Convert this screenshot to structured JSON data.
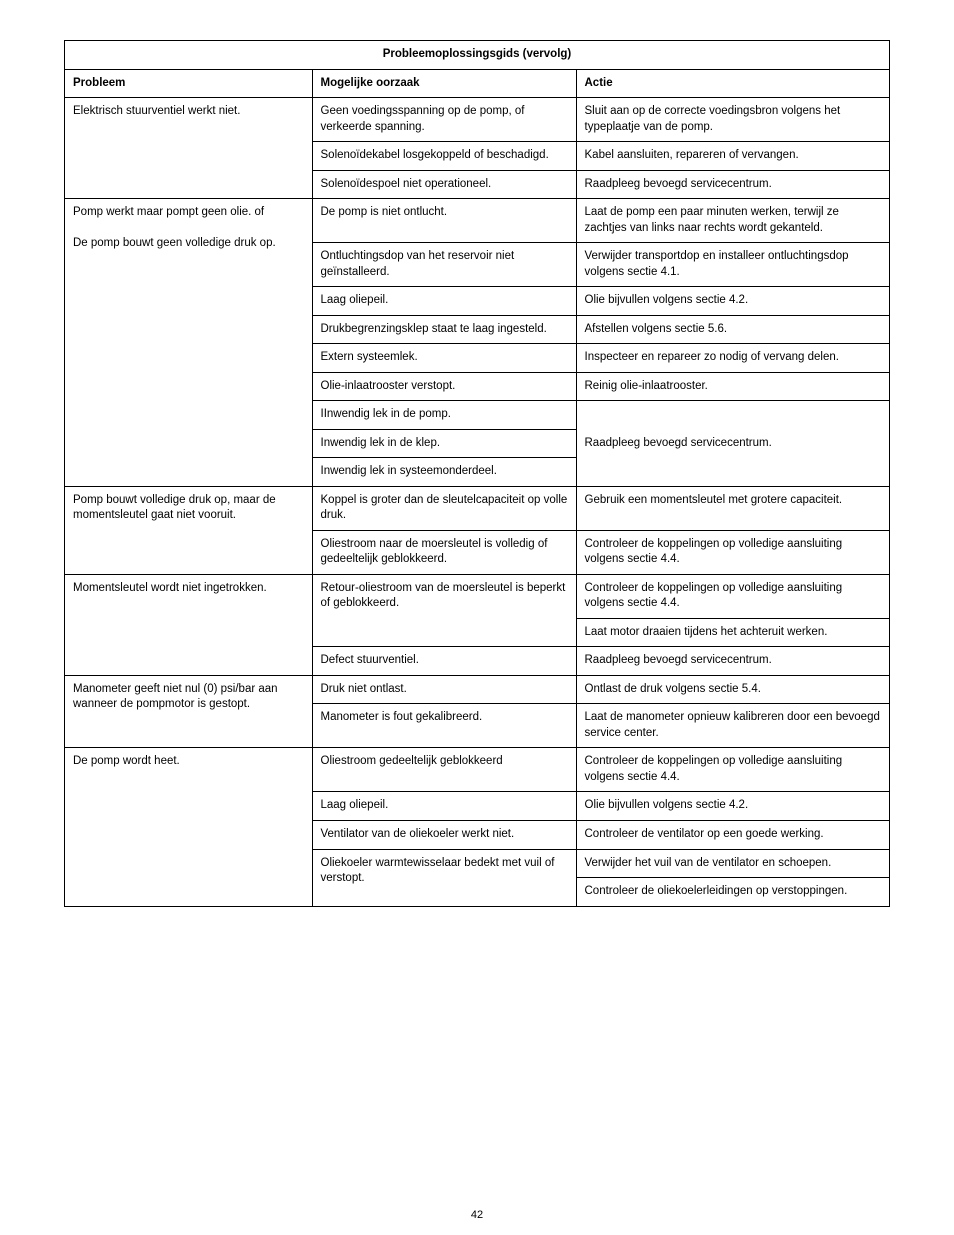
{
  "table": {
    "title": "Probleemoplossingsgids (vervolg)",
    "headers": {
      "problem": "Probleem",
      "cause": "Mogelijke oorzaak",
      "action": "Actie"
    },
    "title_fontsize": 14,
    "header_fontsize": 11.5,
    "cell_fontsize": 11.5,
    "border_color": "#000000",
    "background_color": "#ffffff",
    "column_widths_pct": [
      30,
      32,
      38
    ],
    "groups": [
      {
        "problem": "Elektrisch stuurventiel werkt niet.",
        "rows": [
          {
            "cause": "Geen voedingsspanning op de pomp, of verkeerde spanning.",
            "action": "Sluit aan op de correcte voedingsbron volgens het typeplaatje van de pomp."
          },
          {
            "cause": "Solenoïdekabel losgekoppeld of beschadigd.",
            "action": "Kabel aansluiten, repareren of vervangen."
          },
          {
            "cause": "Solenoïdespoel niet operationeel.",
            "action": "Raadpleeg bevoegd servicecentrum."
          }
        ]
      },
      {
        "problem_lines": [
          "Pomp werkt maar pompt geen olie. of",
          "De pomp bouwt geen volledige druk op."
        ],
        "rows": [
          {
            "cause": "De pomp is niet ontlucht.",
            "action": "Laat de pomp een paar minuten werken, terwijl ze zachtjes van links naar rechts wordt gekanteld.",
            "action_justify": true
          },
          {
            "cause": "Ontluchtingsdop van het reservoir niet geïnstalleerd.",
            "action": "Verwijder transportdop en installeer ontluchtingsdop volgens sectie 4.1."
          },
          {
            "cause": "Laag oliepeil.",
            "action": "Olie bijvullen volgens sectie 4.2."
          },
          {
            "cause": "Drukbegrenzingsklep staat te laag ingesteld.",
            "action": "Afstellen volgens sectie 5.6."
          },
          {
            "cause": "Extern systeemlek.",
            "action": "Inspecteer en repareer zo nodig of vervang delen."
          },
          {
            "cause": "Olie-inlaatrooster verstopt.",
            "action": "Reinig olie-inlaatrooster."
          }
        ],
        "merged_action": {
          "causes": [
            "IInwendig lek in de pomp.",
            "Inwendig lek in de klep.",
            "Inwendig lek in systeemonderdeel."
          ],
          "action": "Raadpleeg bevoegd servicecentrum."
        }
      },
      {
        "problem": "Pomp bouwt volledige druk op, maar de momentsleutel gaat niet vooruit.",
        "rows": [
          {
            "cause": "Koppel is groter dan de sleutelcapaciteit op volle druk.",
            "action": "Gebruik een momentsleutel met grotere capaciteit."
          },
          {
            "cause": "Oliestroom naar de moersleutel is volledig of gedeeltelijk geblokkeerd.",
            "action": "Controleer de koppelingen op volledige aansluiting volgens sectie 4.4."
          }
        ]
      },
      {
        "problem": "Momentsleutel wordt niet ingetrokken.",
        "rows_complex": [
          {
            "cause": "Retour-oliestroom van de moersleutel is beperkt of geblokkeerd.",
            "actions": [
              "Controleer de koppelingen op volledige aansluiting volgens sectie 4.4.",
              "Laat motor draaien tijdens het achteruit werken."
            ]
          },
          {
            "cause": "Defect stuurventiel.",
            "actions": [
              "Raadpleeg bevoegd servicecentrum."
            ]
          }
        ]
      },
      {
        "problem": "Manometer geeft niet nul (0) psi/bar aan wanneer de pompmotor is gestopt.",
        "rows": [
          {
            "cause": "Druk niet ontlast.",
            "action": "Ontlast de druk volgens sectie 5.4."
          },
          {
            "cause": "Manometer is fout gekalibreerd.",
            "action": "Laat de manometer opnieuw kalibreren door een bevoegd service center."
          }
        ]
      },
      {
        "problem": "De pomp wordt heet.",
        "rows": [
          {
            "cause": "Oliestroom gedeeltelijk geblokkeerd",
            "action": "Controleer de koppelingen op volledige aansluiting volgens sectie 4.4."
          },
          {
            "cause": "Laag oliepeil.",
            "action": "Olie bijvullen volgens sectie 4.2."
          },
          {
            "cause": "Ventilator van de oliekoeler werkt niet.",
            "action": "Controleer de ventilator op een goede werking."
          }
        ],
        "rows_complex": [
          {
            "cause": "Oliekoeler warmtewisselaar bedekt met vuil of verstopt.",
            "actions": [
              "Verwijder het vuil van de ventilator en schoepen.",
              "Controleer de oliekoelerleidingen op verstoppingen."
            ]
          }
        ]
      }
    ]
  },
  "page_number": "42"
}
